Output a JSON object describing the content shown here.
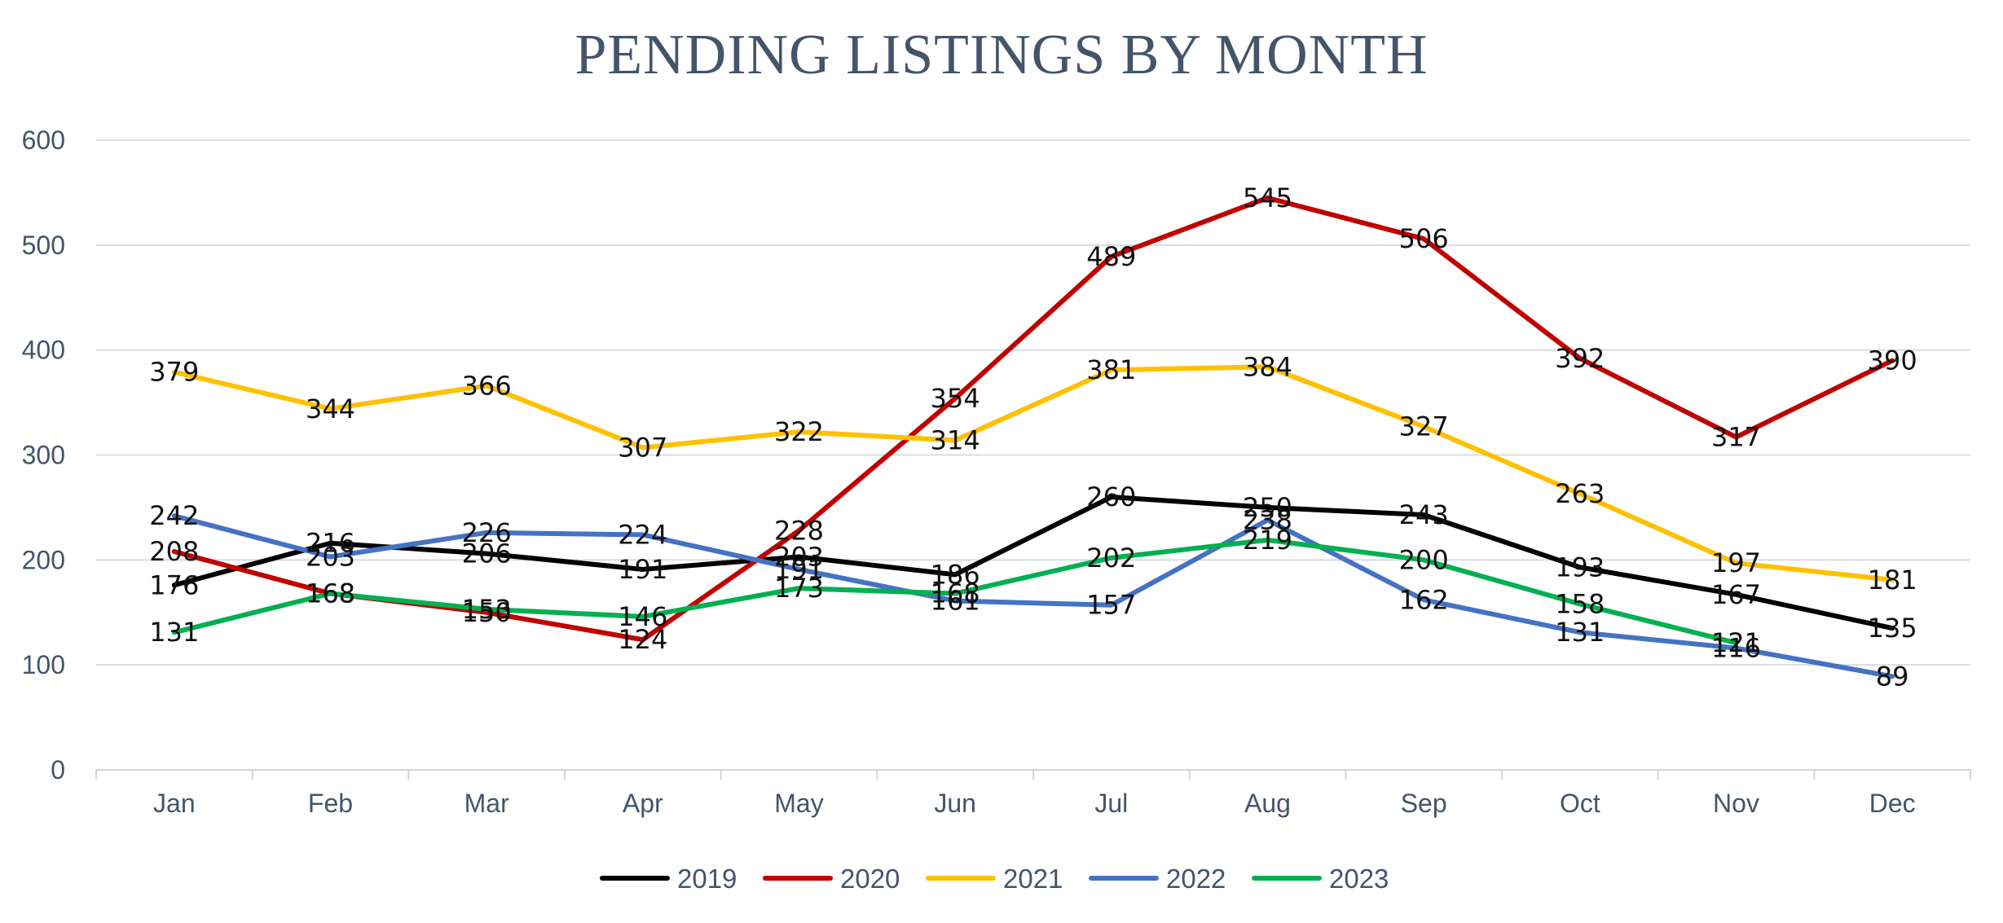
{
  "chart_data": {
    "type": "line",
    "title": "PENDING LISTINGS BY MONTH",
    "xlabel": "",
    "ylabel": "",
    "categories": [
      "Jan",
      "Feb",
      "Mar",
      "Apr",
      "May",
      "Jun",
      "Jul",
      "Aug",
      "Sep",
      "Oct",
      "Nov",
      "Dec"
    ],
    "ylim": [
      0,
      600
    ],
    "yticks": [
      0,
      100,
      200,
      300,
      400,
      500,
      600
    ],
    "grid": true,
    "legend_position": "bottom",
    "series": [
      {
        "name": "2019",
        "color": "#000000",
        "values": [
          176,
          216,
          206,
          191,
          203,
          186,
          260,
          250,
          243,
          193,
          167,
          135
        ]
      },
      {
        "name": "2020",
        "color": "#c00000",
        "values": [
          208,
          168,
          150,
          124,
          228,
          354,
          489,
          545,
          506,
          392,
          317,
          390
        ]
      },
      {
        "name": "2021",
        "color": "#ffc000",
        "values": [
          379,
          344,
          366,
          307,
          322,
          314,
          381,
          384,
          327,
          263,
          197,
          181
        ]
      },
      {
        "name": "2022",
        "color": "#4472c4",
        "values": [
          242,
          203,
          226,
          224,
          191,
          161,
          157,
          238,
          162,
          131,
          116,
          89
        ]
      },
      {
        "name": "2023",
        "color": "#00b050",
        "values": [
          131,
          168,
          153,
          146,
          173,
          168,
          202,
          219,
          200,
          158,
          121,
          null
        ]
      }
    ]
  }
}
